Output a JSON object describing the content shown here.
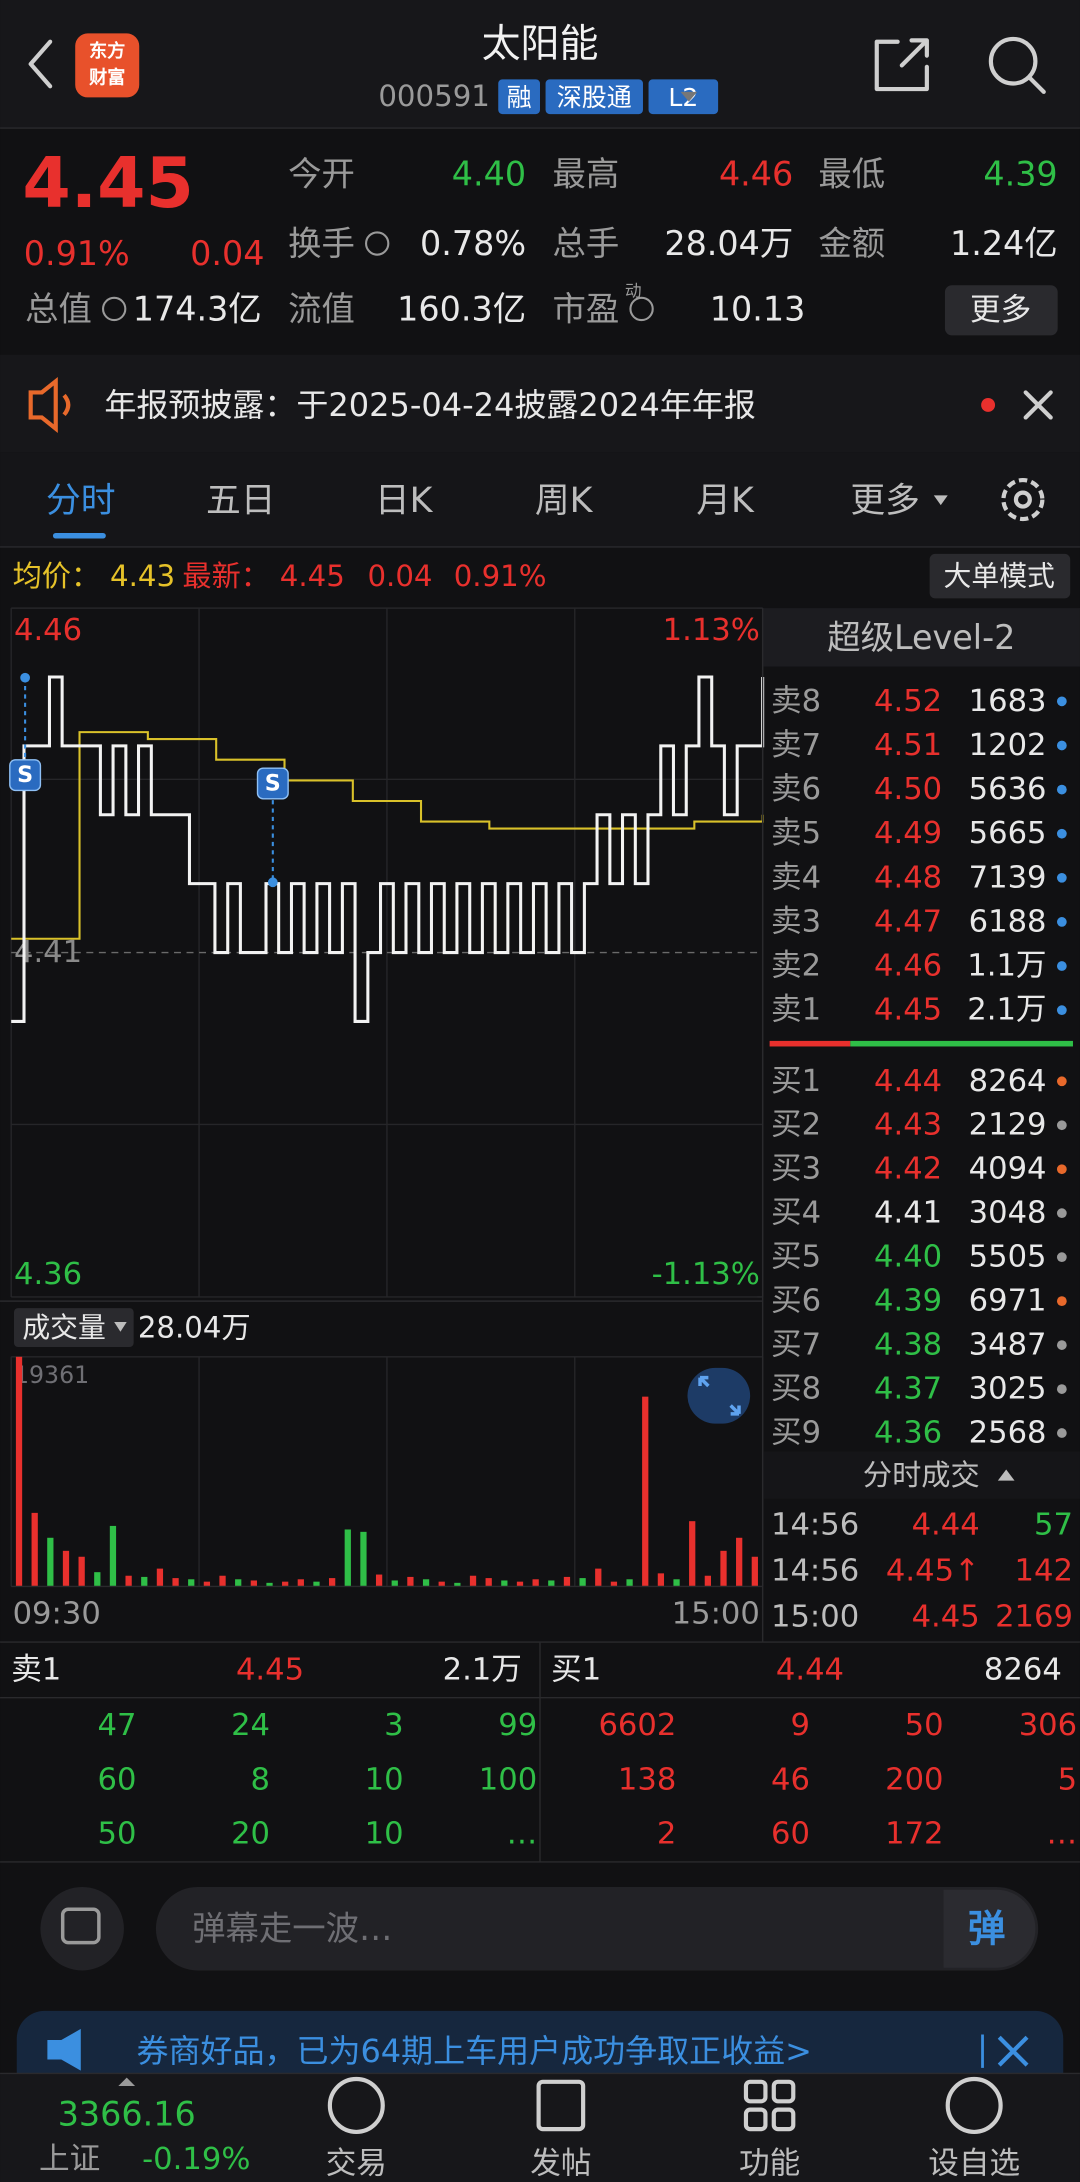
{
  "header": {
    "logo": [
      "东方",
      "财富"
    ],
    "title": "太阳能",
    "code": "000591",
    "tags": [
      "融",
      "深股通",
      "L2"
    ]
  },
  "quote": {
    "price": "4.45",
    "change_pct": "0.91%",
    "change": "0.04",
    "fields": [
      {
        "label": "今开",
        "value": "4.40"
      },
      {
        "label": "最高",
        "value": "4.46"
      },
      {
        "label": "最低",
        "value": "4.39"
      },
      {
        "label": "换手",
        "value": "0.78%"
      },
      {
        "label": "总手",
        "value": "28.04万"
      },
      {
        "label": "金额",
        "value": "1.24亿"
      },
      {
        "label": "总值",
        "value": "174.3亿"
      },
      {
        "label": "流值",
        "value": "160.3亿"
      },
      {
        "label": "市盈",
        "value": "10.13",
        "sup": "动"
      }
    ],
    "more": "更多"
  },
  "notice": "年报预披露：于2025-04-24披露2024年年报",
  "tabs": [
    "分时",
    "五日",
    "日K",
    "周K",
    "月K",
    "更多"
  ],
  "info": {
    "avg_label": "均价：",
    "avg": "4.43",
    "latest_label": "最新：",
    "latest": "4.45",
    "change": "0.04",
    "pct": "0.91%",
    "mode": "大单模式"
  },
  "chart_data": {
    "type": "line",
    "ylim": [
      4.36,
      4.46
    ],
    "yticks": [
      4.46,
      4.41,
      4.36
    ],
    "y2lim": [
      -1.13,
      1.13
    ],
    "y2ticks": [
      {
        "value": 1.13,
        "label": "1.13%"
      },
      {
        "value": -1.13,
        "label": "-1.13%"
      }
    ],
    "price": {
      "color": "#f2f2f2",
      "values": [
        4.4,
        4.44,
        4.44,
        4.45,
        4.44,
        4.44,
        4.44,
        4.43,
        4.44,
        4.43,
        4.44,
        4.43,
        4.43,
        4.43,
        4.42,
        4.42,
        4.41,
        4.42,
        4.41,
        4.41,
        4.42,
        4.41,
        4.42,
        4.41,
        4.42,
        4.41,
        4.42,
        4.4,
        4.41,
        4.42,
        4.41,
        4.42,
        4.41,
        4.42,
        4.41,
        4.42,
        4.41,
        4.42,
        4.41,
        4.42,
        4.41,
        4.42,
        4.41,
        4.42,
        4.41,
        4.42,
        4.43,
        4.42,
        4.43,
        4.42,
        4.43,
        4.44,
        4.43,
        4.44,
        4.45,
        4.44,
        4.43,
        4.44,
        4.44,
        4.45
      ]
    },
    "average": {
      "color": "#d9c12a",
      "values": [
        4.412,
        4.442,
        4.441,
        4.438,
        4.435,
        4.432,
        4.429,
        4.428,
        4.428,
        4.428,
        4.429,
        4.43
      ]
    },
    "signals": [
      "S",
      "S"
    ],
    "x_labels": [
      "09:30",
      "15:00"
    ],
    "volume": {
      "label": "成交量",
      "total": "28.04万",
      "ylim": [
        0,
        19361
      ],
      "yticks": [
        19361
      ],
      "values": [
        19361,
        6200,
        4100,
        3000,
        2500,
        1200,
        5100,
        900,
        800,
        1500,
        700,
        600,
        400,
        900,
        600,
        500,
        300,
        400,
        600,
        400,
        700,
        4800,
        4600,
        1000,
        500,
        800,
        600,
        400,
        300,
        900,
        700,
        500,
        400,
        600,
        500,
        800,
        700,
        1500,
        400,
        600,
        16000,
        1100,
        600,
        5500,
        900,
        3000,
        4100,
        2500
      ],
      "colors": [
        "#e8302d",
        "#e8302d",
        "#2fbf47",
        "#e8302d",
        "#e8302d",
        "#2fbf47",
        "#2fbf47",
        "#e8302d",
        "#2fbf47",
        "#e8302d",
        "#e8302d",
        "#2fbf47",
        "#e8302d",
        "#e8302d",
        "#2fbf47",
        "#e8302d",
        "#2fbf47",
        "#e8302d",
        "#e8302d",
        "#2fbf47",
        "#e8302d",
        "#2fbf47",
        "#2fbf47",
        "#e8302d",
        "#2fbf47",
        "#e8302d",
        "#2fbf47",
        "#e8302d",
        "#2fbf47",
        "#e8302d",
        "#e8302d",
        "#2fbf47",
        "#e8302d",
        "#e8302d",
        "#2fbf47",
        "#e8302d",
        "#2fbf47",
        "#e8302d",
        "#e8302d",
        "#2fbf47",
        "#e8302d",
        "#e8302d",
        "#2fbf47",
        "#e8302d",
        "#e8302d",
        "#e8302d",
        "#e8302d",
        "#e8302d"
      ]
    }
  },
  "order_book": {
    "title": "超级Level-2",
    "asks": [
      {
        "label": "卖8",
        "price": "4.52",
        "volume": "1683"
      },
      {
        "label": "卖7",
        "price": "4.51",
        "volume": "1202"
      },
      {
        "label": "卖6",
        "price": "4.50",
        "volume": "5636"
      },
      {
        "label": "卖5",
        "price": "4.49",
        "volume": "5665"
      },
      {
        "label": "卖4",
        "price": "4.48",
        "volume": "7139"
      },
      {
        "label": "卖3",
        "price": "4.47",
        "volume": "6188"
      },
      {
        "label": "卖2",
        "price": "4.46",
        "volume": "1.1万"
      },
      {
        "label": "卖1",
        "price": "4.45",
        "volume": "2.1万"
      }
    ],
    "bids": [
      {
        "label": "买1",
        "price": "4.44",
        "volume": "8264"
      },
      {
        "label": "买2",
        "price": "4.43",
        "volume": "2129"
      },
      {
        "label": "买3",
        "price": "4.42",
        "volume": "4094"
      },
      {
        "label": "买4",
        "price": "4.41",
        "volume": "3048"
      },
      {
        "label": "买5",
        "price": "4.40",
        "volume": "5505"
      },
      {
        "label": "买6",
        "price": "4.39",
        "volume": "6971"
      },
      {
        "label": "买7",
        "price": "4.38",
        "volume": "3487"
      },
      {
        "label": "买8",
        "price": "4.37",
        "volume": "3025"
      },
      {
        "label": "买9",
        "price": "4.36",
        "volume": "2568"
      }
    ]
  },
  "trades": {
    "title": "分时成交",
    "rows": [
      [
        "14:56",
        "4.44",
        "57"
      ],
      [
        "14:56",
        "4.45↑",
        "142"
      ],
      [
        "15:00",
        "4.45",
        "2169"
      ]
    ]
  },
  "queue": {
    "ask": {
      "label": "卖1",
      "price": "4.45",
      "volume": "2.1万",
      "orders": [
        "47",
        "24",
        "3",
        "99",
        "60",
        "8",
        "10",
        "100",
        "50",
        "20",
        "10",
        "…"
      ]
    },
    "bid": {
      "label": "买1",
      "price": "4.44",
      "volume": "8264",
      "orders": [
        "6602",
        "9",
        "50",
        "306",
        "138",
        "46",
        "200",
        "5",
        "2",
        "60",
        "172",
        "…"
      ]
    }
  },
  "comment": {
    "placeholder": "弹幕走一波…",
    "button": "弹"
  },
  "ad": "券商好品，已为64期上车用户成功争取正收益>",
  "nav": {
    "index_value": "3366.16",
    "index_name": "上证",
    "index_change": "-0.19%",
    "items": [
      "交易",
      "发帖",
      "功能",
      "设自选"
    ]
  }
}
